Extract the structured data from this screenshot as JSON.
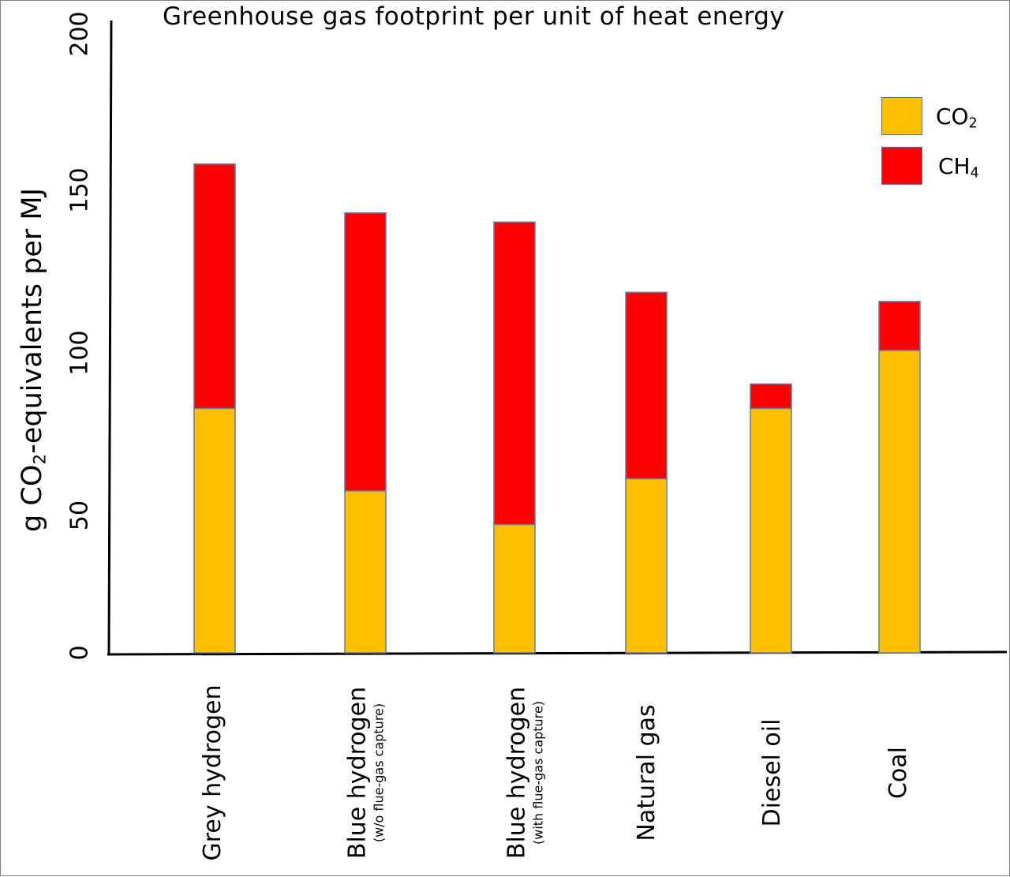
{
  "chart_data": {
    "type": "bar",
    "stacked": true,
    "title": "Greenhouse gas footprint per unit of heat energy",
    "ylabel_main": "g CO",
    "ylabel_sub": "2",
    "ylabel_rest": "-equivalents per MJ",
    "xlabel": "",
    "ylim": [
      0,
      200
    ],
    "yticks": [
      "0",
      "50",
      "100",
      "150",
      "200"
    ],
    "categories": [
      {
        "main": "Grey hydrogen",
        "sub": ""
      },
      {
        "main": "Blue hydrogen",
        "sub": "(w/o flue-gas capture)"
      },
      {
        "main": "Blue hydrogen",
        "sub": "(with flue-gas capture)"
      },
      {
        "main": "Natural gas",
        "sub": ""
      },
      {
        "main": "Diesel oil",
        "sub": ""
      },
      {
        "main": "Coal",
        "sub": ""
      }
    ],
    "series": [
      {
        "name_main": "CO",
        "name_sub": "2",
        "color": "#ffc000",
        "values": [
          80,
          53,
          42,
          57,
          80,
          99
        ]
      },
      {
        "name_main": "CH",
        "name_sub": "4",
        "color": "#ff0000",
        "values": [
          80,
          91,
          99,
          61,
          8,
          16
        ]
      }
    ],
    "grid": false,
    "legend_position": "top-right"
  }
}
